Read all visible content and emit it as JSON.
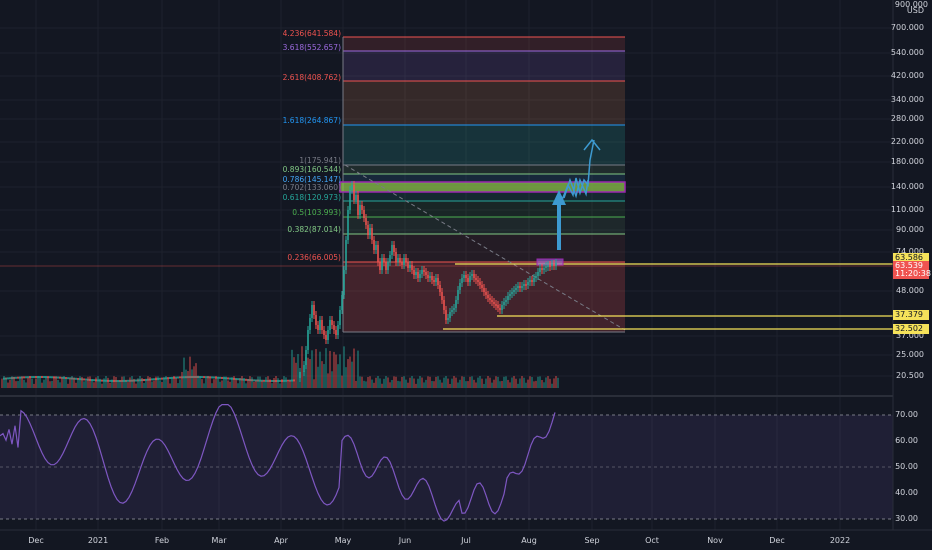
{
  "currency": "USD",
  "top_tick": "900.000",
  "price_axis": [
    "700.000",
    "540.000",
    "420.000",
    "340.000",
    "280.000",
    "220.000",
    "180.000",
    "140.000",
    "110.000",
    "90.000",
    "74.000",
    "48.000",
    "37.000",
    "25.000",
    "20.500"
  ],
  "rsi_axis": [
    "70.00",
    "60.00",
    "50.00",
    "40.00",
    "30.00"
  ],
  "time_axis": [
    "Dec",
    "2021",
    "Feb",
    "Mar",
    "Apr",
    "May",
    "Jun",
    "Jul",
    "Aug",
    "Sep",
    "Oct",
    "Nov",
    "Dec",
    "2022"
  ],
  "fib_levels": [
    {
      "label": "4.236(641.584)",
      "color": "#ef5350"
    },
    {
      "label": "3.618(552.657)",
      "color": "#9c6ade"
    },
    {
      "label": "2.618(408.762)",
      "color": "#ef5350"
    },
    {
      "label": "1.618(264.867)",
      "color": "#2196f3"
    },
    {
      "label": "1(175.941)",
      "color": "#787b86"
    },
    {
      "label": "0.893(160.544)",
      "color": "#81c784"
    },
    {
      "label": "0.786(145.147)",
      "color": "#42a5f5"
    },
    {
      "label": "0.702(133.060)",
      "color": "#787b86"
    },
    {
      "label": "0.618(120.973)",
      "color": "#26a69a"
    },
    {
      "label": "0.5(103.993)",
      "color": "#4caf50"
    },
    {
      "label": "0.382(87.014)",
      "color": "#81c784"
    },
    {
      "label": "0.236(66.005)",
      "color": "#ef5350"
    }
  ],
  "price_tags": [
    {
      "text": "63.586",
      "bg": "#f5e25a",
      "fg": "#131722"
    },
    {
      "text": "63.539",
      "bg": "#ef5350",
      "fg": "#ffffff"
    },
    {
      "text": "11:20:38",
      "bg": "#ef5350",
      "fg": "#ffffff"
    },
    {
      "text": "37.379",
      "bg": "#f5e25a",
      "fg": "#131722"
    },
    {
      "text": "32.502",
      "bg": "#f5e25a",
      "fg": "#131722"
    }
  ],
  "colors": {
    "bg": "#131722",
    "up": "#26a69a",
    "down": "#ef5350",
    "rsi": "#7e57c2",
    "hline": "#f5e25a",
    "arrow": "#3d9ad1"
  }
}
